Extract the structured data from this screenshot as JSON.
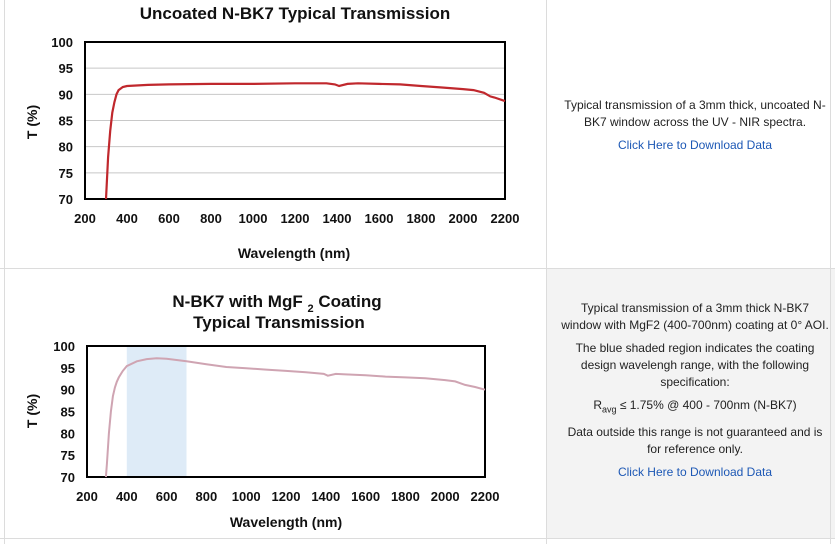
{
  "charts": [
    {
      "title_lines": [
        "Uncoated N-BK7 Typical Transmission"
      ],
      "description": [
        "Typical transmission of a 3mm thick, uncoated N-BK7 window across the UV - NIR spectra."
      ],
      "link_label": "Click Here to Download Data"
    },
    {
      "title_lines": [
        "N-BK7 with MgF2 Coating",
        "Typical Transmission"
      ],
      "description": [
        "Typical transmission of a 3mm thick N-BK7 window with MgF2 (400-700nm) coating at 0° AOI.",
        "The blue shaded region indicates the coating design wavelengh range, with the following specification:"
      ],
      "spec": {
        "symbol": "R",
        "subscript": "avg",
        "text": " ≤ 1.75% @ 400 - 700nm (N-BK7)"
      },
      "note": "Data outside this range is not guaranteed and is for reference only.",
      "link_label": "Click Here to Download Data"
    }
  ],
  "chart_data": [
    {
      "type": "line",
      "title": "Uncoated N-BK7 Typical Transmission",
      "xlabel": "Wavelength (nm)",
      "ylabel": "T (%)",
      "xlim": [
        200,
        2200
      ],
      "ylim": [
        70,
        100
      ],
      "xticks": [
        200,
        400,
        600,
        800,
        1000,
        1200,
        1400,
        1600,
        1800,
        2000,
        2200
      ],
      "yticks": [
        70,
        75,
        80,
        85,
        90,
        95,
        100
      ],
      "grid": "horizontal",
      "color": "#c0282d",
      "series": [
        {
          "x": [
            300,
            310,
            320,
            330,
            340,
            350,
            360,
            380,
            400,
            500,
            600,
            800,
            1000,
            1200,
            1350,
            1390,
            1410,
            1450,
            1500,
            1600,
            1700,
            1800,
            1900,
            2000,
            2050,
            2100,
            2130,
            2150,
            2200
          ],
          "y": [
            70,
            78,
            83,
            86.5,
            88.5,
            90,
            90.8,
            91.4,
            91.6,
            91.8,
            91.9,
            92,
            92,
            92.1,
            92.1,
            91.9,
            91.6,
            92,
            92.1,
            92,
            91.9,
            91.6,
            91.3,
            91,
            90.8,
            90.3,
            89.6,
            89.4,
            88.7
          ]
        }
      ]
    },
    {
      "type": "line",
      "title": "N-BK7 with MgF2 Coating Typical Transmission",
      "xlabel": "Wavelength (nm)",
      "ylabel": "T (%)",
      "xlim": [
        200,
        2200
      ],
      "ylim": [
        70,
        100
      ],
      "xticks": [
        200,
        400,
        600,
        800,
        1000,
        1200,
        1400,
        1600,
        1800,
        2000,
        2200
      ],
      "yticks": [
        70,
        75,
        80,
        85,
        90,
        95,
        100
      ],
      "grid": "none",
      "shaded_region": [
        400,
        700
      ],
      "shade_color": "#deebf7",
      "color": "#cfa4b2",
      "series": [
        {
          "x": [
            295,
            300,
            310,
            320,
            330,
            340,
            350,
            360,
            380,
            400,
            450,
            500,
            550,
            600,
            700,
            800,
            900,
            1000,
            1100,
            1200,
            1300,
            1390,
            1410,
            1450,
            1500,
            1600,
            1700,
            1800,
            1900,
            2000,
            2050,
            2100,
            2150,
            2200
          ],
          "y": [
            70,
            73,
            80,
            85,
            88.5,
            90.5,
            91.8,
            92.8,
            94.3,
            95.4,
            96.5,
            97,
            97.2,
            97.1,
            96.5,
            95.8,
            95.2,
            94.9,
            94.6,
            94.3,
            94,
            93.6,
            93.2,
            93.6,
            93.5,
            93.3,
            93,
            92.8,
            92.6,
            92.2,
            91.9,
            91.1,
            90.6,
            90
          ]
        }
      ]
    }
  ]
}
